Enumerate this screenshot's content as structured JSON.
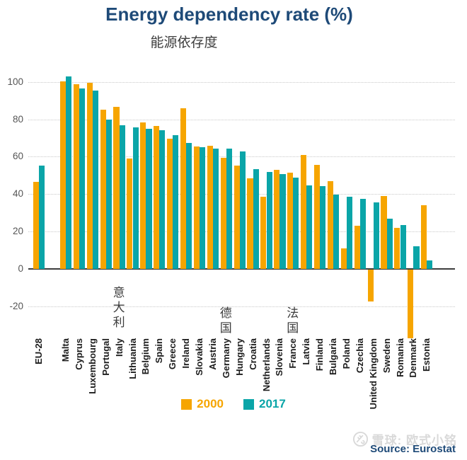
{
  "title": "Energy dependency rate (%)",
  "subtitle": "能源依存度",
  "source_note": "Source: Eurostat",
  "watermark_text": "雪球: 欧式小铭",
  "colors": {
    "series_2000": "#F6A500",
    "series_2017": "#0AA5A8",
    "title_navy": "#1E4A78",
    "axis": "#3d3d3d",
    "gridline": "#c9c9c9",
    "tick_text": "#555555",
    "category_text": "#1c1c1c",
    "watermark_gray": "#d9d9d9"
  },
  "legend": [
    {
      "label": "2000",
      "color": "#F6A500"
    },
    {
      "label": "2017",
      "color": "#0AA5A8"
    }
  ],
  "chart_data": {
    "type": "bar",
    "title": "Energy dependency rate (%)",
    "subtitle": "能源依存度",
    "xlabel": "",
    "ylabel": "",
    "ylim": [
      -40,
      105
    ],
    "yticks": [
      100,
      80,
      60,
      40,
      20,
      0,
      -20
    ],
    "grid": "horizontal dotted",
    "legend_position": "bottom",
    "gap_after_first_category": true,
    "categories": [
      "EU-28",
      "Malta",
      "Cyprus",
      "Luxembourg",
      "Portugal",
      "Italy",
      "Lithuania",
      "Belgium",
      "Spain",
      "Greece",
      "Ireland",
      "Slovakia",
      "Austria",
      "Germany",
      "Hungary",
      "Croatia",
      "Netherlands",
      "Slovenia",
      "France",
      "Latvia",
      "Finland",
      "Bulgaria",
      "Poland",
      "Czechia",
      "United Kingdom",
      "Sweden",
      "Romania",
      "Denmark",
      "Estonia"
    ],
    "series": [
      {
        "name": "2000",
        "color": "#F6A500",
        "values": [
          46.6,
          100.4,
          98.6,
          99.6,
          85.2,
          86.5,
          59.0,
          78.2,
          76.6,
          69.5,
          85.7,
          65.5,
          66.0,
          59.5,
          55.2,
          48.6,
          38.6,
          53.0,
          51.4,
          61.0,
          55.5,
          46.8,
          11.2,
          23.1,
          -17.0,
          39.0,
          22.1,
          -36.6,
          34.1
        ]
      },
      {
        "name": "2017",
        "color": "#0AA5A8",
        "values": [
          55.1,
          103.0,
          96.3,
          95.4,
          79.8,
          76.7,
          75.8,
          74.8,
          74.1,
          71.6,
          67.4,
          65.1,
          64.5,
          64.5,
          63.0,
          53.3,
          52.0,
          50.8,
          48.9,
          44.6,
          44.3,
          39.6,
          38.5,
          37.6,
          35.6,
          26.9,
          23.5,
          12.1,
          4.6
        ]
      }
    ],
    "annotations": [
      {
        "text": "意大利",
        "category": "Italy"
      },
      {
        "text": "德国",
        "category": "Germany"
      },
      {
        "text": "法国",
        "category": "France"
      }
    ]
  }
}
